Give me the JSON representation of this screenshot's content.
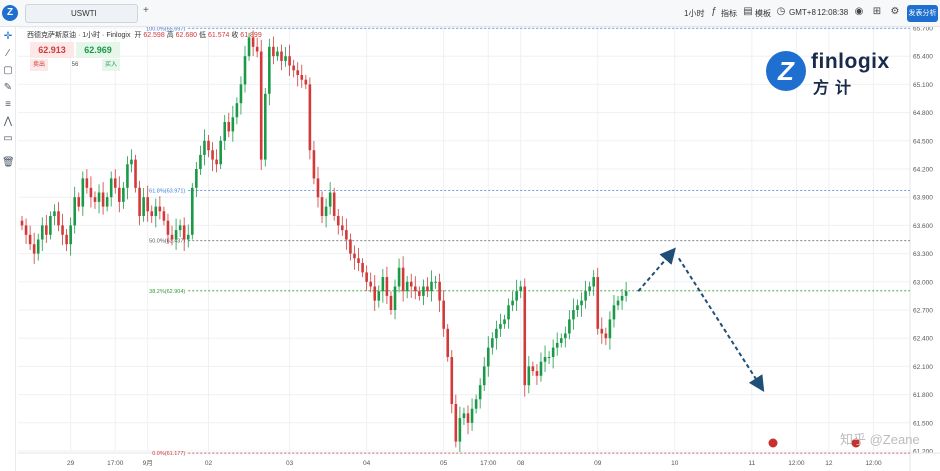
{
  "topbar": {
    "tab_label": "USWTI",
    "add_tab": "+",
    "interval": "1小时",
    "indicators": "指标",
    "templates": "模板",
    "timezone": "GMT+8",
    "clock": "12:08:38",
    "publish": "发表分析"
  },
  "legend": {
    "symbol": "西德克萨斯原油 · 1小时 · Finlogix",
    "open_label": "开",
    "open": "62.598",
    "high_label": "高",
    "high": "62.680",
    "low_label": "低",
    "low": "61.574",
    "close_label": "收",
    "close": "61.899"
  },
  "trade": {
    "sell_price": "62.913",
    "buy_price": "62.969",
    "sell_label": "卖出",
    "spread": "56",
    "buy_label": "买入"
  },
  "brand": {
    "name": "finlogix",
    "cn": "方计",
    "mark": "Z"
  },
  "watermark": "知乎 @Zeane",
  "colors": {
    "up": "#1a9a47",
    "down": "#d23a3a",
    "accent": "#1e6fd0",
    "arrow": "#1f4e79"
  },
  "icons": [
    "crosshair-icon",
    "trendline-icon",
    "rectangle-icon",
    "brush-icon",
    "fib-icon",
    "pattern-icon",
    "text-icon",
    "trash-icon",
    "candle-type-icon",
    "template-icon",
    "camera-icon",
    "fullscreen-icon",
    "settings-icon"
  ],
  "chart_data": {
    "type": "candlestick",
    "title": "",
    "ylim": [
      61.2,
      65.7
    ],
    "y_ticks": [
      "65.700",
      "65.400",
      "65.100",
      "64.800",
      "64.500",
      "64.200",
      "63.900",
      "63.600",
      "63.300",
      "63.000",
      "62.700",
      "62.400",
      "62.100",
      "61.800",
      "61.500",
      "61.200"
    ],
    "x_ticks": [
      {
        "label": "29",
        "index": 12
      },
      {
        "label": "17:00",
        "index": 23
      },
      {
        "label": "9月",
        "index": 31
      },
      {
        "label": "02",
        "index": 46
      },
      {
        "label": "03",
        "index": 66
      },
      {
        "label": "04",
        "index": 85
      },
      {
        "label": "05",
        "index": 104
      },
      {
        "label": "17:00",
        "index": 115
      },
      {
        "label": "08",
        "index": 123
      },
      {
        "label": "09",
        "index": 142
      },
      {
        "label": "10",
        "index": 161
      },
      {
        "label": "11",
        "index": 180
      },
      {
        "label": "12:00",
        "index": 191
      },
      {
        "label": "12",
        "index": 199
      },
      {
        "label": "12:00",
        "index": 210
      }
    ],
    "fib_levels": [
      {
        "label": "100.0%(65.697)",
        "value": 65.697,
        "color": "#3a7bd5"
      },
      {
        "label": "61.8%(63.971)",
        "value": 63.971,
        "color": "#3a7bd5"
      },
      {
        "label": "50.0%(63.437)",
        "value": 63.437,
        "color": "#555555"
      },
      {
        "label": "38.2%(62.904)",
        "value": 62.904,
        "color": "#2e9b2e"
      },
      {
        "label": "0.0%(61.177)",
        "value": 61.177,
        "color": "#d23a3a"
      }
    ],
    "fib_start_index": 41,
    "closes": [
      63.6,
      63.5,
      63.4,
      63.3,
      63.45,
      63.6,
      63.5,
      63.7,
      63.75,
      63.6,
      63.5,
      63.4,
      63.6,
      63.9,
      63.8,
      64.1,
      64.0,
      63.9,
      63.85,
      63.95,
      63.8,
      63.9,
      64.1,
      64.0,
      63.85,
      64.0,
      64.25,
      64.3,
      64.0,
      63.7,
      63.9,
      63.75,
      63.7,
      63.8,
      63.75,
      63.65,
      63.5,
      63.45,
      63.55,
      63.6,
      63.45,
      63.5,
      64.0,
      64.2,
      64.35,
      64.5,
      64.4,
      64.3,
      64.25,
      64.5,
      64.7,
      64.6,
      64.75,
      64.9,
      65.1,
      65.4,
      65.6,
      65.5,
      65.45,
      64.3,
      65.0,
      65.5,
      65.4,
      65.45,
      65.35,
      65.4,
      65.3,
      65.25,
      65.2,
      65.15,
      65.1,
      64.4,
      64.1,
      63.9,
      63.7,
      63.8,
      63.95,
      63.7,
      63.6,
      63.55,
      63.45,
      63.3,
      63.25,
      63.2,
      63.1,
      63.0,
      62.95,
      62.8,
      62.9,
      63.05,
      62.85,
      62.7,
      62.95,
      63.15,
      62.9,
      63.0,
      62.95,
      62.9,
      62.85,
      62.95,
      62.9,
      63.0,
      63.0,
      62.8,
      62.5,
      62.2,
      61.7,
      61.3,
      61.55,
      61.6,
      61.5,
      61.65,
      61.75,
      61.9,
      62.1,
      62.3,
      62.4,
      62.5,
      62.55,
      62.6,
      62.75,
      62.8,
      62.9,
      62.95,
      61.9,
      62.1,
      62.05,
      62.0,
      62.15,
      62.2,
      62.2,
      62.3,
      62.35,
      62.4,
      62.45,
      62.6,
      62.7,
      62.75,
      62.8,
      62.9,
      62.95,
      63.05,
      62.5,
      62.45,
      62.4,
      62.6,
      62.75,
      62.8,
      62.85,
      62.9
    ],
    "arrow_path": [
      {
        "index": 152,
        "value": 62.9
      },
      {
        "index": 160,
        "value": 63.3
      },
      {
        "index": 162,
        "value": 63.25
      },
      {
        "index": 182,
        "value": 61.9
      }
    ],
    "grid": true,
    "legend": "top-left"
  }
}
